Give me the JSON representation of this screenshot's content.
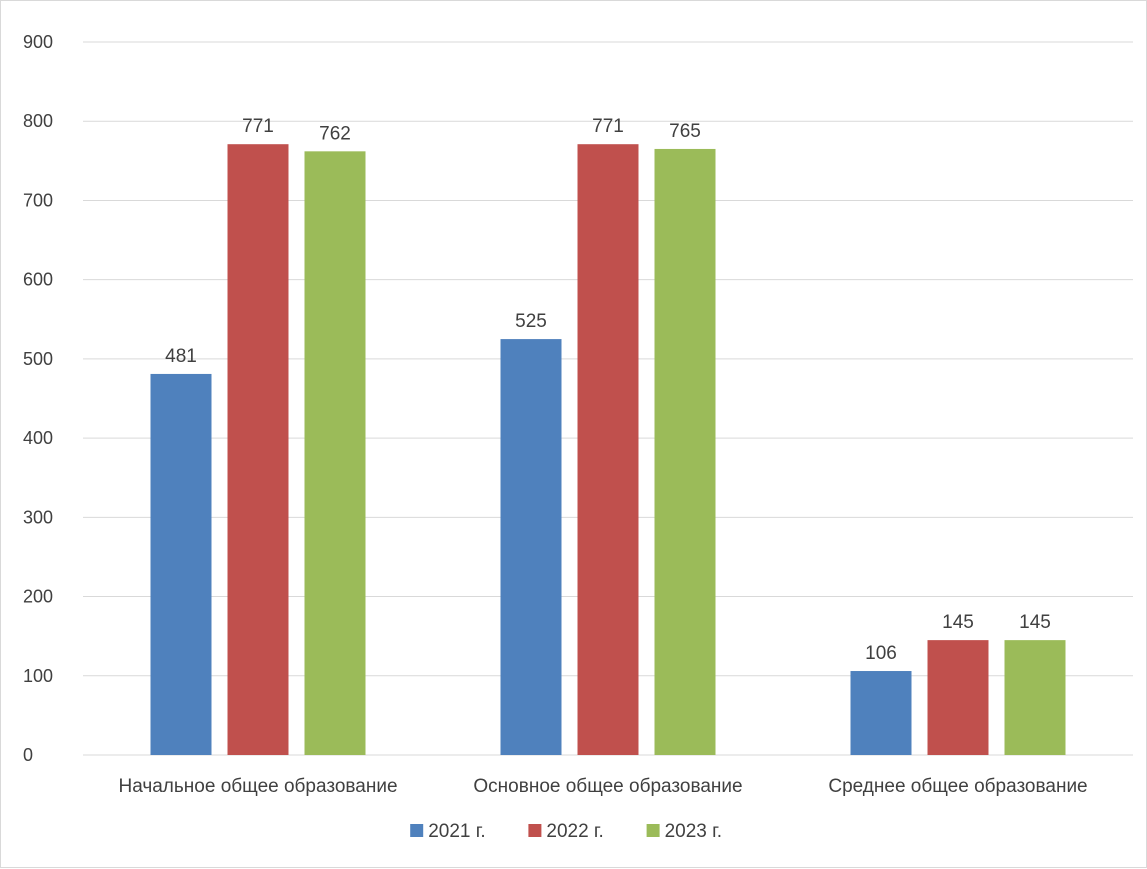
{
  "chart_data": {
    "type": "bar",
    "categories": [
      "Начальное общее образование",
      "Основное общее образование",
      "Среднее общее образование"
    ],
    "series": [
      {
        "name": "2021 г.",
        "color": "#4f81bd",
        "values": [
          481,
          525,
          106
        ]
      },
      {
        "name": "2022 г.",
        "color": "#c0504d",
        "values": [
          771,
          771,
          145
        ]
      },
      {
        "name": "2023 г.",
        "color": "#9bbb59",
        "values": [
          762,
          765,
          145
        ]
      }
    ],
    "title": "",
    "xlabel": "",
    "ylabel": "",
    "ylim": [
      0,
      900
    ],
    "yticks": [
      0,
      100,
      200,
      300,
      400,
      500,
      600,
      700,
      800,
      900
    ],
    "grid": true,
    "data_labels": true,
    "legend": "bottom"
  }
}
